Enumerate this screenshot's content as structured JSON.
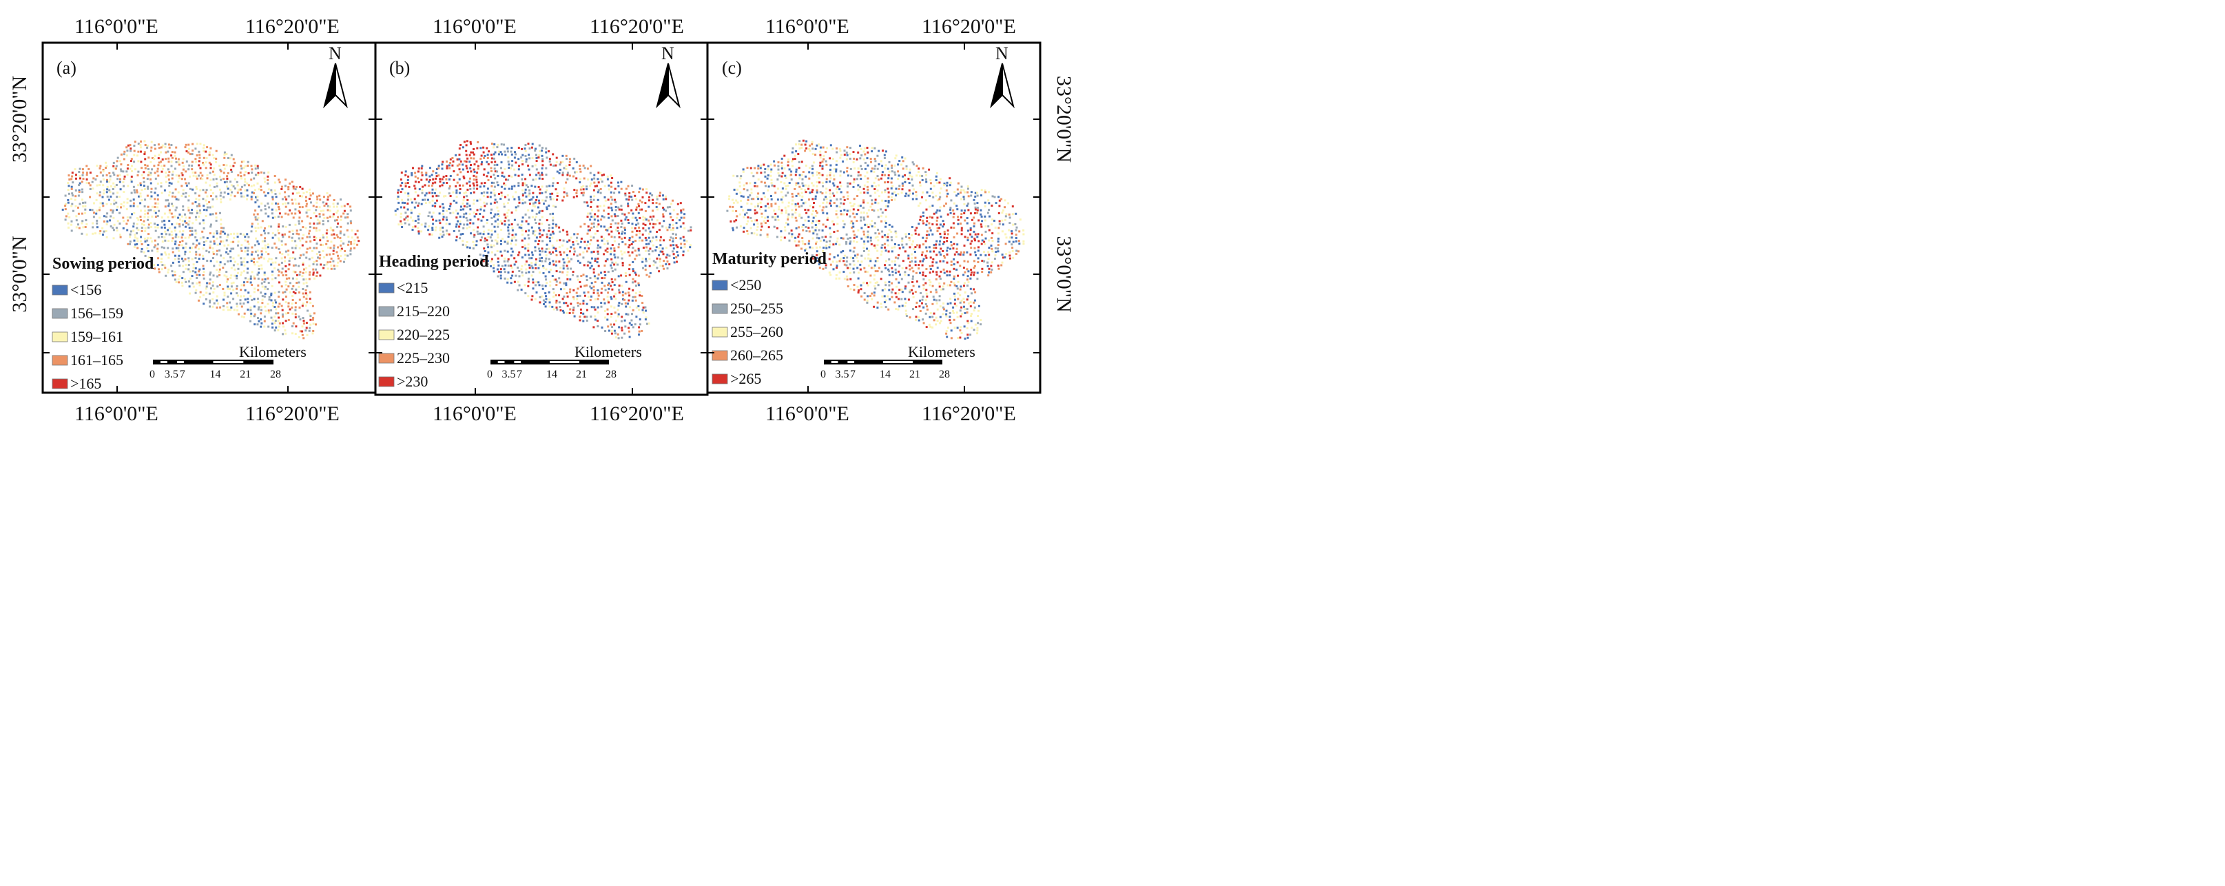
{
  "figure": {
    "panels": [
      {
        "id": "a",
        "label": "(a)",
        "legend_title": "Sowing period",
        "classes": [
          {
            "label": "<156",
            "color": "#4a76b8"
          },
          {
            "label": "156–159",
            "color": "#9aa8b4"
          },
          {
            "label": "159–161",
            "color": "#fbf4b6"
          },
          {
            "label": "161–165",
            "color": "#ec9364"
          },
          {
            "label": ">165",
            "color": "#d7332c"
          }
        ]
      },
      {
        "id": "b",
        "label": "(b)",
        "legend_title": "Heading period",
        "classes": [
          {
            "label": "<215",
            "color": "#4a76b8"
          },
          {
            "label": "215–220",
            "color": "#9aa8b4"
          },
          {
            "label": "220–225",
            "color": "#fbf4b6"
          },
          {
            "label": "225–230",
            "color": "#ec9364"
          },
          {
            "label": ">230",
            "color": "#d7332c"
          }
        ]
      },
      {
        "id": "c",
        "label": "(c)",
        "legend_title": "Maturity period",
        "classes": [
          {
            "label": "<250",
            "color": "#4a76b8"
          },
          {
            "label": "250–255",
            "color": "#9aa8b4"
          },
          {
            "label": "255–260",
            "color": "#fbf4b6"
          },
          {
            "label": "260–265",
            "color": "#ec9364"
          },
          {
            "label": ">265",
            "color": "#d7332c"
          }
        ]
      }
    ],
    "lon_labels": [
      "116°0'0\"E",
      "116°20'0\"E"
    ],
    "lat_labels": [
      "33°20'0\"N",
      "33°0'0\"N"
    ],
    "north_label": "N",
    "scale_unit": "Kilometers",
    "scale_ticks": [
      "0",
      "3.5",
      "7",
      "14",
      "21",
      "28"
    ]
  }
}
